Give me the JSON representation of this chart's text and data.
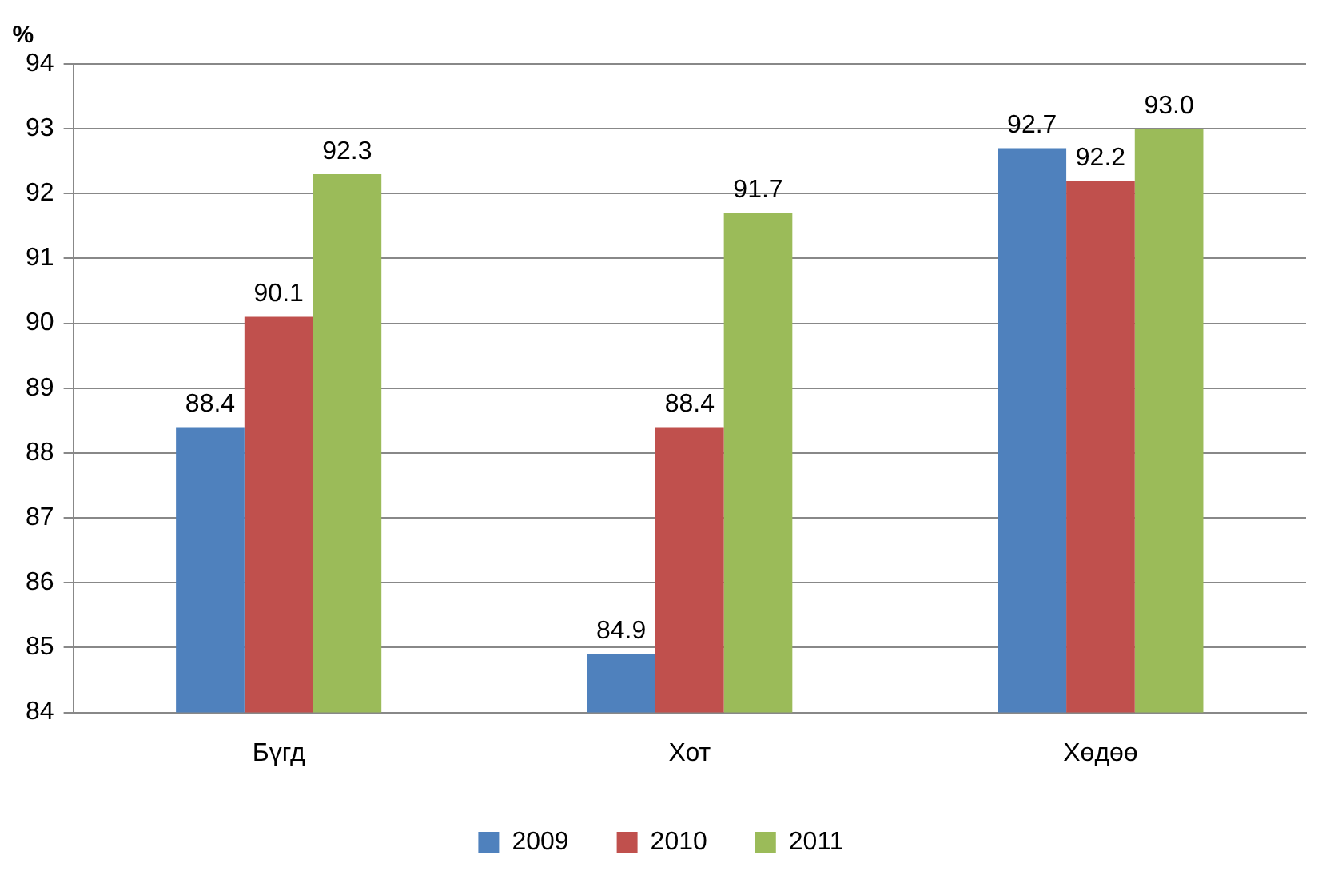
{
  "chart_data": {
    "type": "bar",
    "ylabel": "%",
    "categories": [
      "Бүгд",
      "Хот",
      "Хөдөө"
    ],
    "series": [
      {
        "name": "2009",
        "color": "#4f81bd",
        "values": [
          88.4,
          84.9,
          92.7
        ],
        "value_labels": [
          "88.4",
          "84.9",
          "92.7"
        ]
      },
      {
        "name": "2010",
        "color": "#c0504d",
        "values": [
          90.1,
          88.4,
          92.2
        ],
        "value_labels": [
          "90.1",
          "88.4",
          "92.2"
        ]
      },
      {
        "name": "2011",
        "color": "#9bbb59",
        "values": [
          92.3,
          91.7,
          93.0
        ],
        "value_labels": [
          "92.3",
          "91.7",
          "93.0"
        ]
      }
    ],
    "ylim": [
      84,
      94
    ],
    "yticks": [
      84,
      85,
      86,
      87,
      88,
      89,
      90,
      91,
      92,
      93,
      94
    ],
    "grid": "y",
    "legend": "bottom"
  }
}
